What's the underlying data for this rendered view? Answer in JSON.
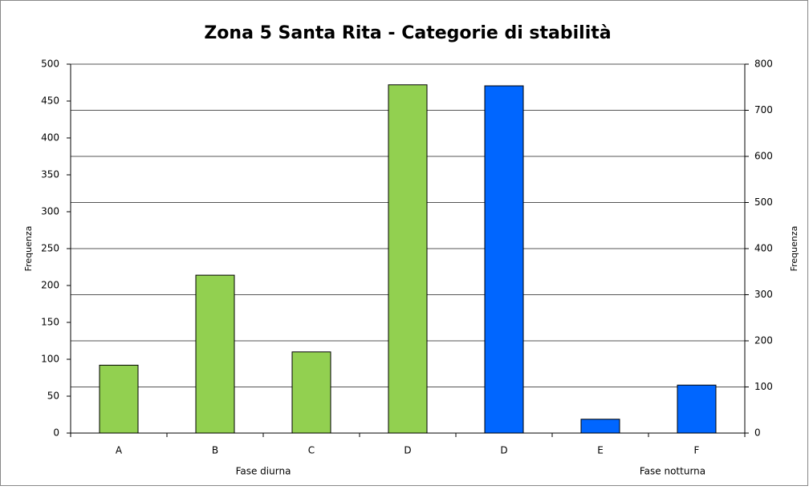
{
  "chart_data": {
    "type": "bar",
    "title": "Zona 5 Santa Rita - Categorie di stabilità",
    "categories": [
      "A",
      "B",
      "C",
      "D",
      "D",
      "E",
      "F"
    ],
    "series": [
      {
        "name": "Fase diurna",
        "color": "#92d050",
        "values": [
          92,
          214,
          110,
          472,
          null,
          null,
          null
        ]
      },
      {
        "name": "Fase notturna",
        "color": "#0066ff",
        "axis": "y2",
        "values": [
          null,
          null,
          null,
          null,
          753,
          30,
          104
        ]
      }
    ],
    "ylabel": "Frequenza",
    "y2label": "Frequenza",
    "ylim": [
      0,
      500
    ],
    "yticks": [
      0,
      50,
      100,
      150,
      200,
      250,
      300,
      350,
      400,
      450,
      500
    ],
    "y2lim": [
      0,
      800
    ],
    "y2ticks": [
      0,
      100,
      200,
      300,
      400,
      500,
      600,
      700,
      800
    ],
    "grid": "y2"
  }
}
